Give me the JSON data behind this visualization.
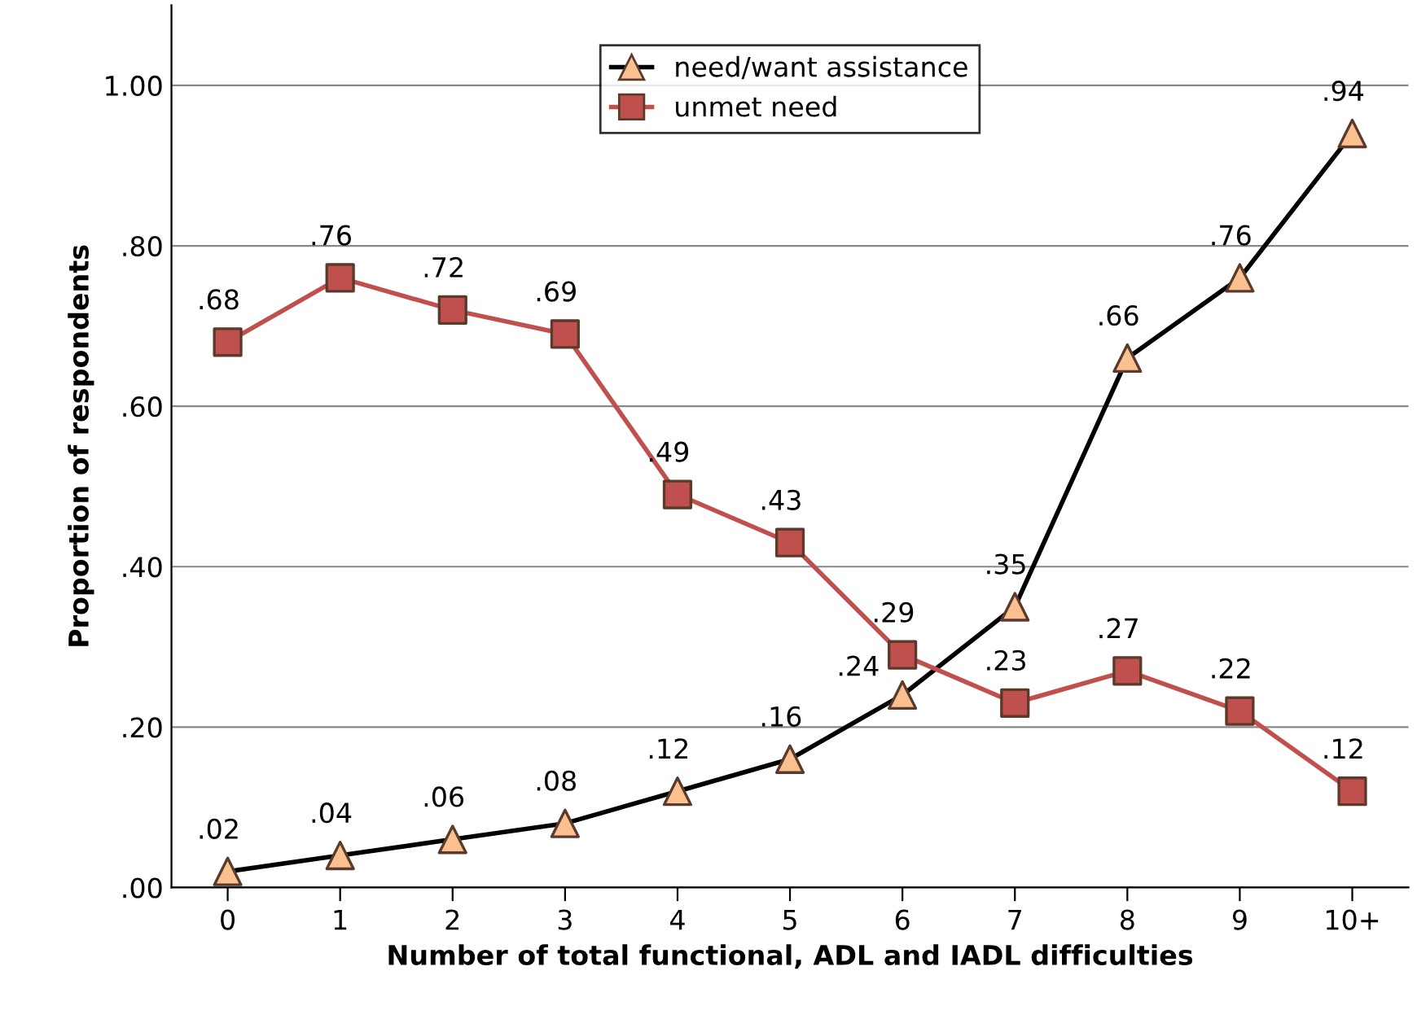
{
  "chart_data": {
    "type": "line",
    "xlabel": "Number of total functional, ADL and IADL difficulties",
    "ylabel": "Proportion of respondents",
    "categories": [
      "0",
      "1",
      "2",
      "3",
      "4",
      "5",
      "6",
      "7",
      "8",
      "9",
      "10+"
    ],
    "series": [
      {
        "name": "need/want assistance",
        "color": "#000000",
        "colors": [
          "#fac090",
          "#fac090",
          "#fac090",
          "#fac090",
          "#fac090",
          "#fac090",
          "#fac090",
          "#fac090",
          "#fac090",
          "#fac090",
          "#fac090"
        ],
        "marker": "triangle",
        "values": [
          0.02,
          0.04,
          0.06,
          0.08,
          0.12,
          0.16,
          0.24,
          0.35,
          0.66,
          0.76,
          0.94
        ],
        "value_labels": [
          ".02",
          ".04",
          ".06",
          ".08",
          ".12",
          ".16",
          ".24",
          ".35",
          ".66",
          ".76",
          ".94"
        ]
      },
      {
        "name": "unmet need",
        "color": "#c0504d",
        "marker": "square",
        "values": [
          0.68,
          0.76,
          0.72,
          0.69,
          0.49,
          0.43,
          0.29,
          0.23,
          0.27,
          0.22,
          0.12
        ],
        "value_labels": [
          ".68",
          ".76",
          ".72",
          ".69",
          ".49",
          ".43",
          ".29",
          ".23",
          ".27",
          ".22",
          ".12"
        ]
      }
    ],
    "ylim": [
      0,
      1.1
    ],
    "yticks": [
      {
        "value": 0,
        "label": ".00"
      },
      {
        "value": 0.2,
        "label": ".20"
      },
      {
        "value": 0.4,
        "label": ".40"
      },
      {
        "value": 0.6,
        "label": ".60"
      },
      {
        "value": 0.8,
        "label": ".80"
      },
      {
        "value": 1.0,
        "label": "1.00"
      }
    ],
    "grid": "y",
    "legend": "top"
  }
}
